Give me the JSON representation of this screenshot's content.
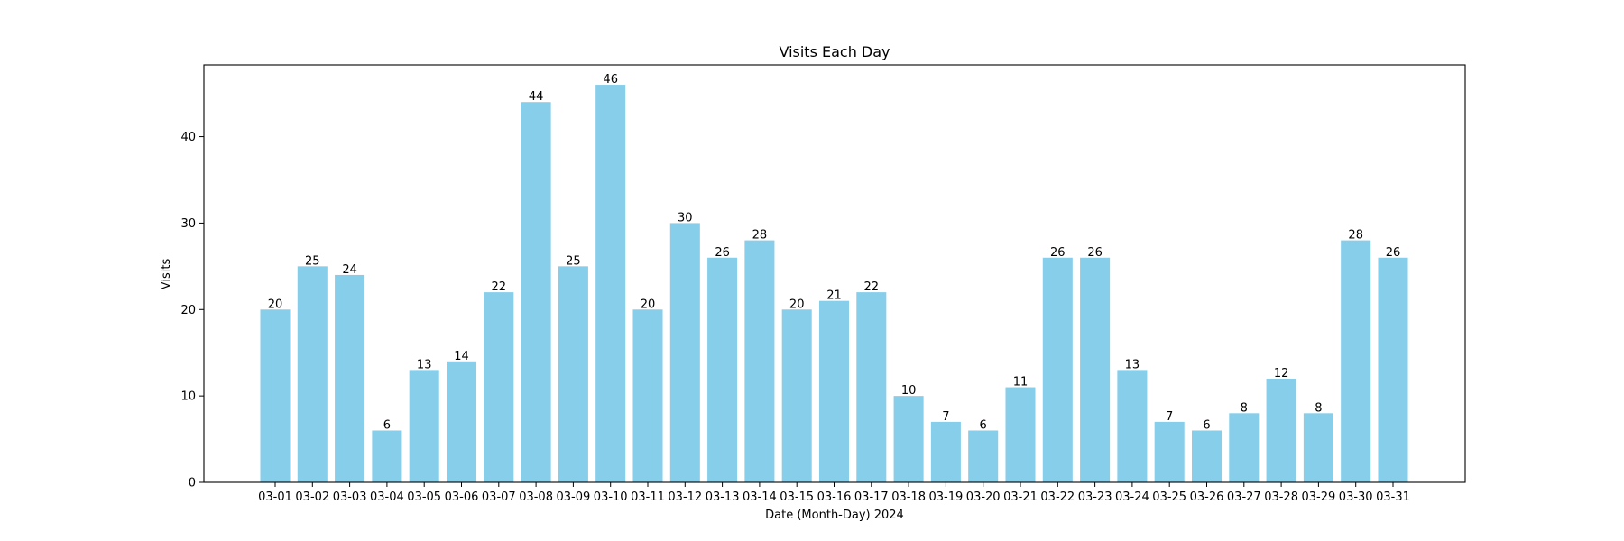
{
  "chart_data": {
    "type": "bar",
    "title": "Visits Each Day",
    "xlabel": "Date (Month-Day) 2024",
    "ylabel": "Visits",
    "categories": [
      "03-01",
      "03-02",
      "03-03",
      "03-04",
      "03-05",
      "03-06",
      "03-07",
      "03-08",
      "03-09",
      "03-10",
      "03-11",
      "03-12",
      "03-13",
      "03-14",
      "03-15",
      "03-16",
      "03-17",
      "03-18",
      "03-19",
      "03-20",
      "03-21",
      "03-22",
      "03-23",
      "03-24",
      "03-25",
      "03-26",
      "03-27",
      "03-28",
      "03-29",
      "03-30",
      "03-31"
    ],
    "values": [
      20,
      25,
      24,
      6,
      13,
      14,
      22,
      44,
      25,
      46,
      20,
      30,
      26,
      28,
      20,
      21,
      22,
      10,
      7,
      6,
      11,
      26,
      26,
      13,
      7,
      6,
      8,
      12,
      8,
      28,
      26
    ],
    "ylim": [
      0,
      48.3
    ],
    "yticks": [
      0,
      10,
      20,
      30,
      40
    ],
    "bar_color": "#87CEEB",
    "grid": false,
    "data_labels": true
  }
}
